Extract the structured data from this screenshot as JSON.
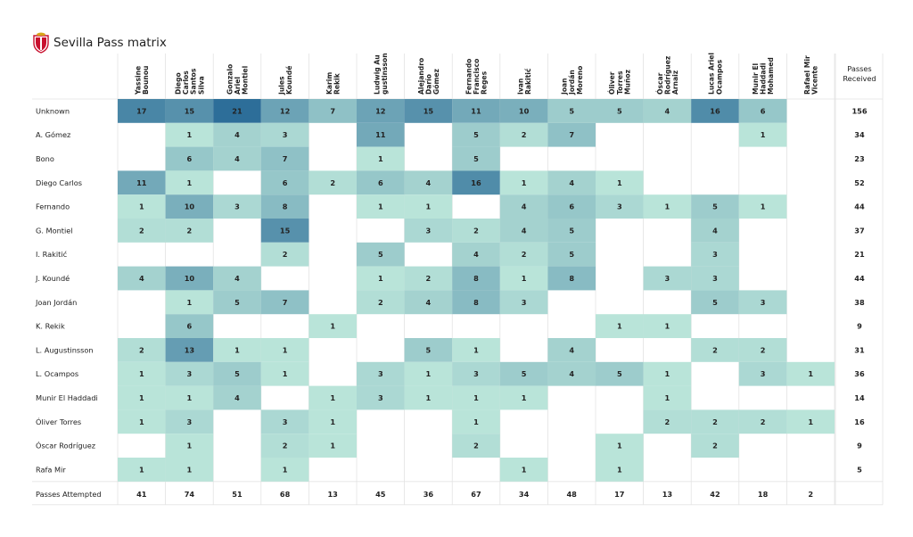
{
  "title": "Sevilla Pass matrix",
  "crest_icon": "sevilla-crest-icon",
  "chart_data": {
    "type": "heatmap",
    "title": "Sevilla Pass matrix",
    "columns": [
      [
        "Yassine",
        "Bounou"
      ],
      [
        "Diego",
        "Carlos",
        "Santos",
        "Silva"
      ],
      [
        "Gonzalo",
        "Ariel",
        "Montiel"
      ],
      [
        "Jules",
        "Koundé"
      ],
      [
        "Karim",
        "Rekik"
      ],
      [
        "Ludwig Au",
        "gustinsson"
      ],
      [
        "Alejandro",
        "Darío",
        "Gómez"
      ],
      [
        "Fernando",
        "Francisco",
        "Reges"
      ],
      [
        "Ivan",
        "Rakitić"
      ],
      [
        "Joan",
        "Jordán",
        "Moreno"
      ],
      [
        "Óliver",
        "Torres",
        "Muñoz"
      ],
      [
        "Óscar",
        "Rodríguez",
        "Arnaiz"
      ],
      [
        "Lucas Ariel",
        "Ocampos"
      ],
      [
        "Munir El",
        "Haddadi",
        "Mohamed"
      ],
      [
        "Rafael Mir",
        "Vicente"
      ]
    ],
    "rows": [
      "Unknown",
      "A. Gómez",
      "Bono",
      "Diego Carlos",
      "Fernando",
      "G. Montiel",
      "I. Rakitić",
      "J. Koundé",
      "Joan Jordán",
      "K. Rekik",
      "L. Augustinsson",
      "L. Ocampos",
      "Munir El Haddadi",
      "Óliver Torres",
      "Óscar Rodríguez",
      "Rafa Mir"
    ],
    "values": [
      [
        17,
        15,
        21,
        12,
        7,
        12,
        15,
        11,
        10,
        5,
        5,
        4,
        16,
        6,
        null
      ],
      [
        null,
        1,
        4,
        3,
        null,
        11,
        null,
        5,
        2,
        7,
        null,
        null,
        null,
        1,
        null
      ],
      [
        null,
        6,
        4,
        7,
        null,
        1,
        null,
        5,
        null,
        null,
        null,
        null,
        null,
        null,
        null
      ],
      [
        11,
        1,
        null,
        6,
        2,
        6,
        4,
        16,
        1,
        4,
        1,
        null,
        null,
        null,
        null
      ],
      [
        1,
        10,
        3,
        8,
        null,
        1,
        1,
        null,
        4,
        6,
        3,
        1,
        5,
        1,
        null
      ],
      [
        2,
        2,
        null,
        15,
        null,
        null,
        3,
        2,
        4,
        5,
        null,
        null,
        4,
        null,
        null
      ],
      [
        null,
        null,
        null,
        2,
        null,
        5,
        null,
        4,
        2,
        5,
        null,
        null,
        3,
        null,
        null
      ],
      [
        4,
        10,
        4,
        null,
        null,
        1,
        2,
        8,
        1,
        8,
        null,
        3,
        3,
        null,
        null
      ],
      [
        null,
        1,
        5,
        7,
        null,
        2,
        4,
        8,
        3,
        null,
        null,
        null,
        5,
        3,
        null
      ],
      [
        null,
        6,
        null,
        null,
        1,
        null,
        null,
        null,
        null,
        null,
        1,
        1,
        null,
        null,
        null
      ],
      [
        2,
        13,
        1,
        1,
        null,
        null,
        5,
        1,
        null,
        4,
        null,
        null,
        2,
        2,
        null
      ],
      [
        1,
        3,
        5,
        1,
        null,
        3,
        1,
        3,
        5,
        4,
        5,
        1,
        null,
        3,
        1
      ],
      [
        1,
        1,
        4,
        null,
        1,
        3,
        1,
        1,
        1,
        null,
        null,
        1,
        null,
        null,
        null
      ],
      [
        1,
        3,
        null,
        3,
        1,
        null,
        null,
        1,
        null,
        null,
        null,
        2,
        2,
        2,
        1
      ],
      [
        null,
        1,
        null,
        2,
        1,
        null,
        null,
        2,
        null,
        null,
        1,
        null,
        2,
        null,
        null
      ],
      [
        1,
        1,
        null,
        1,
        null,
        null,
        null,
        null,
        1,
        null,
        1,
        null,
        null,
        null,
        null
      ]
    ],
    "passes_received_label": [
      "Passes",
      "Received"
    ],
    "passes_received": [
      156,
      34,
      23,
      52,
      44,
      37,
      21,
      44,
      38,
      9,
      31,
      36,
      14,
      16,
      9,
      5
    ],
    "passes_attempted_label": "Passes Attempted",
    "passes_attempted": [
      41,
      74,
      51,
      68,
      13,
      45,
      36,
      67,
      34,
      48,
      17,
      13,
      42,
      18,
      2
    ],
    "colors": {
      "low": "#b9e4d9",
      "high": "#2d6e99",
      "text": "#222222",
      "grid": "#e3e3e3"
    }
  }
}
